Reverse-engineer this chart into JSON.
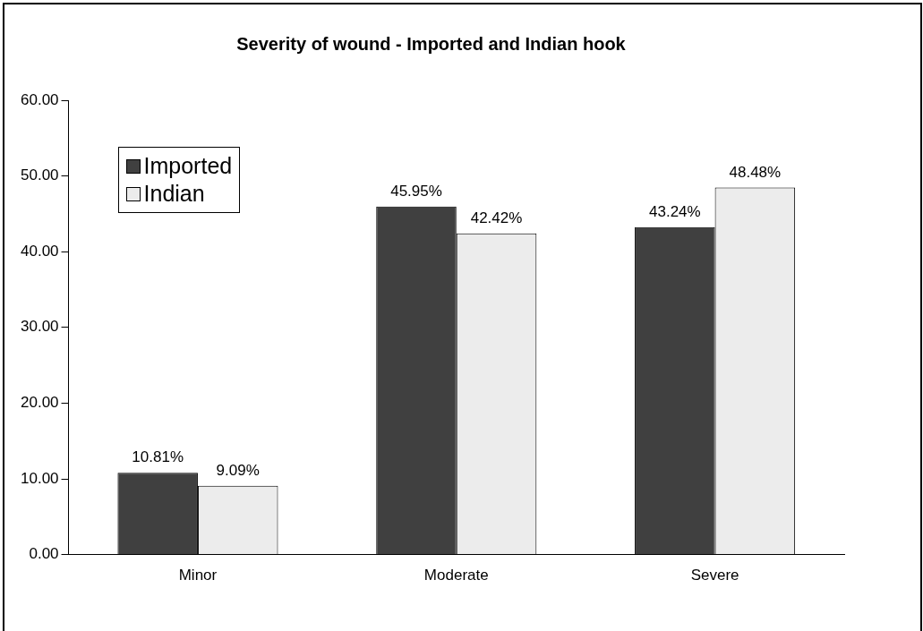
{
  "chart_data": {
    "type": "bar",
    "title": "Severity of wound - Imported and Indian hook",
    "categories": [
      "Minor",
      "Moderate",
      "Severe"
    ],
    "series": [
      {
        "name": "Imported",
        "color": "#404040",
        "values": [
          10.81,
          45.95,
          43.24
        ],
        "value_labels": [
          "10.81%",
          "45.95%",
          "43.24%"
        ]
      },
      {
        "name": "Indian",
        "color": "#ececec",
        "values": [
          9.09,
          42.42,
          48.48
        ],
        "value_labels": [
          "9.09%",
          "42.42%",
          "48.48%"
        ]
      }
    ],
    "ylim": [
      0,
      60
    ],
    "yticks": [
      {
        "value": 0,
        "label": "0.00"
      },
      {
        "value": 10,
        "label": "10.00"
      },
      {
        "value": 20,
        "label": "20.00"
      },
      {
        "value": 30,
        "label": "30.00"
      },
      {
        "value": 40,
        "label": "40.00"
      },
      {
        "value": 50,
        "label": "50.00"
      },
      {
        "value": 60,
        "label": "60.00"
      }
    ],
    "grid": false,
    "legend": "top left"
  }
}
